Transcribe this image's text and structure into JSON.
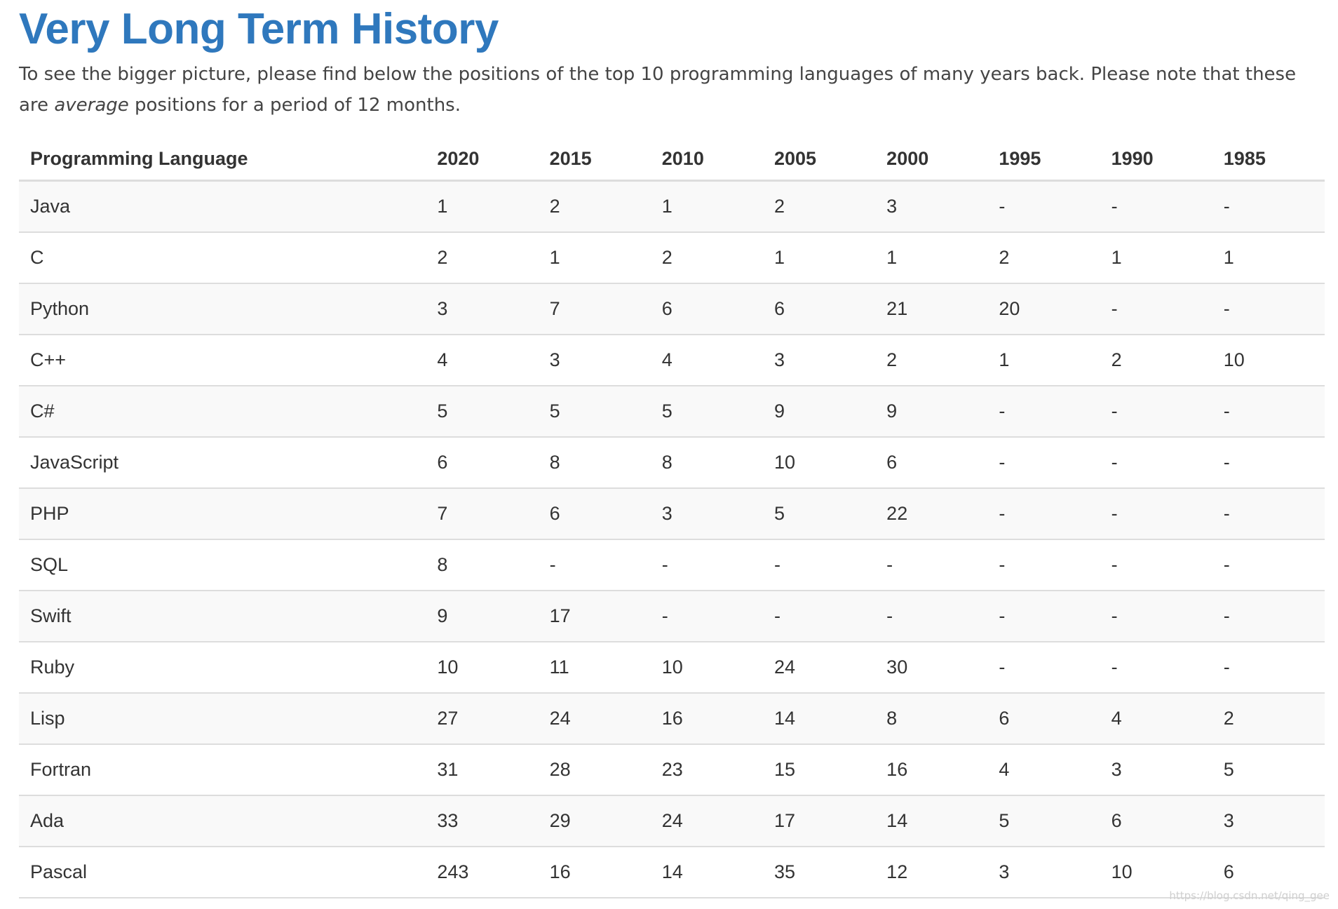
{
  "page": {
    "title": "Very Long Term History",
    "intro_before": "To see the bigger picture, please find below the positions of the top 10 programming languages of many years back. Please note that these are ",
    "intro_emphasis": "average",
    "intro_after": " positions for a period of 12 months."
  },
  "table": {
    "headers": [
      "Programming Language",
      "2020",
      "2015",
      "2010",
      "2005",
      "2000",
      "1995",
      "1990",
      "1985"
    ],
    "rows": [
      [
        "Java",
        "1",
        "2",
        "1",
        "2",
        "3",
        "-",
        "-",
        "-"
      ],
      [
        "C",
        "2",
        "1",
        "2",
        "1",
        "1",
        "2",
        "1",
        "1"
      ],
      [
        "Python",
        "3",
        "7",
        "6",
        "6",
        "21",
        "20",
        "-",
        "-"
      ],
      [
        "C++",
        "4",
        "3",
        "4",
        "3",
        "2",
        "1",
        "2",
        "10"
      ],
      [
        "C#",
        "5",
        "5",
        "5",
        "9",
        "9",
        "-",
        "-",
        "-"
      ],
      [
        "JavaScript",
        "6",
        "8",
        "8",
        "10",
        "6",
        "-",
        "-",
        "-"
      ],
      [
        "PHP",
        "7",
        "6",
        "3",
        "5",
        "22",
        "-",
        "-",
        "-"
      ],
      [
        "SQL",
        "8",
        "-",
        "-",
        "-",
        "-",
        "-",
        "-",
        "-"
      ],
      [
        "Swift",
        "9",
        "17",
        "-",
        "-",
        "-",
        "-",
        "-",
        "-"
      ],
      [
        "Ruby",
        "10",
        "11",
        "10",
        "24",
        "30",
        "-",
        "-",
        "-"
      ],
      [
        "Lisp",
        "27",
        "24",
        "16",
        "14",
        "8",
        "6",
        "4",
        "2"
      ],
      [
        "Fortran",
        "31",
        "28",
        "23",
        "15",
        "16",
        "4",
        "3",
        "5"
      ],
      [
        "Ada",
        "33",
        "29",
        "24",
        "17",
        "14",
        "5",
        "6",
        "3"
      ],
      [
        "Pascal",
        "243",
        "16",
        "14",
        "35",
        "12",
        "3",
        "10",
        "6"
      ]
    ]
  },
  "watermark": "https://blog.csdn.net/qing_gee",
  "colors": {
    "title": "#2f78bd",
    "text": "#333333",
    "row_stripe": "#f9f9f9",
    "border": "#dddddd"
  }
}
